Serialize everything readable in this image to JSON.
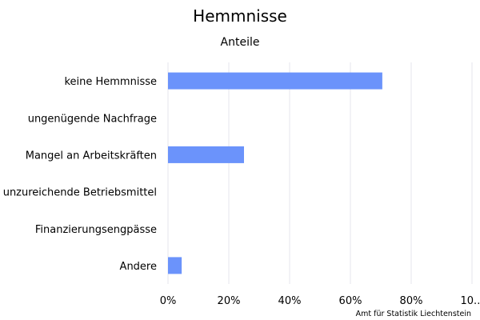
{
  "chart_data": {
    "type": "bar",
    "orientation": "horizontal",
    "title": "Hemmnisse",
    "subtitle": "Anteile",
    "categories": [
      "keine Hemmnisse",
      "ungenügende Nachfrage",
      "Mangel an Arbeitskräften",
      "unzureichende Betriebsmittel",
      "Finanzierungsengpässe",
      "Andere"
    ],
    "values": [
      70.5,
      0,
      25,
      0,
      0,
      4.5
    ],
    "xlim": [
      0,
      100
    ],
    "xticks": [
      "0%",
      "20%",
      "40%",
      "60%",
      "80%",
      "10..."
    ],
    "grid": true,
    "bar_color": "#6b93fb",
    "credit": "Amt für Statistik Liechtenstein"
  }
}
